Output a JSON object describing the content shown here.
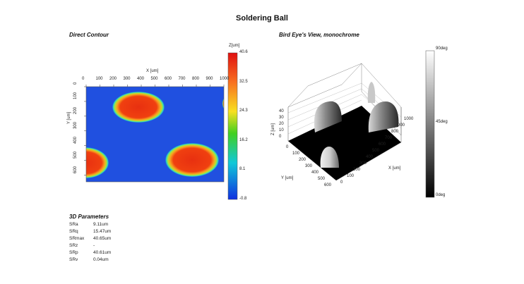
{
  "title": "Soldering Ball",
  "left_panel": {
    "title": "Direct Contour",
    "x_axis_label": "X [um]",
    "y_axis_label": "Y [um]",
    "x_ticks": [
      "0",
      "100",
      "200",
      "300",
      "400",
      "500",
      "600",
      "700",
      "800",
      "900",
      "1000"
    ],
    "y_ticks": [
      "0",
      "100",
      "200",
      "300",
      "400",
      "500",
      "600"
    ],
    "colorbar_unit": "Z[um]",
    "colorbar_ticks": [
      "40.6",
      "32.5",
      "24.3",
      "16.2",
      "8.1",
      "-0.8"
    ]
  },
  "right_panel": {
    "title": "Bird Eye's View, monochrome",
    "z_axis_label": "Z [um]",
    "z_ticks": [
      "40",
      "30",
      "20",
      "10",
      "0"
    ],
    "y_axis_label": "Y [um]",
    "y_ticks": [
      "0",
      "100",
      "200",
      "300",
      "400",
      "500",
      "600"
    ],
    "x_axis_label": "X [um]",
    "x_ticks": [
      "0",
      "100",
      "200",
      "300",
      "400",
      "500",
      "600",
      "700",
      "800",
      "900",
      "1000"
    ],
    "colorbar_ticks": [
      "90deg",
      "45deg",
      "0deg"
    ]
  },
  "params": {
    "title": "3D Parameters",
    "rows": [
      {
        "name": "SRa",
        "value": "9.11um"
      },
      {
        "name": "SRq",
        "value": "15.47um"
      },
      {
        "name": "SRmax",
        "value": "40.65um"
      },
      {
        "name": "SRz",
        "value": "-"
      },
      {
        "name": "SRp",
        "value": "40.61um"
      },
      {
        "name": "SRv",
        "value": "0.04um"
      }
    ]
  }
}
